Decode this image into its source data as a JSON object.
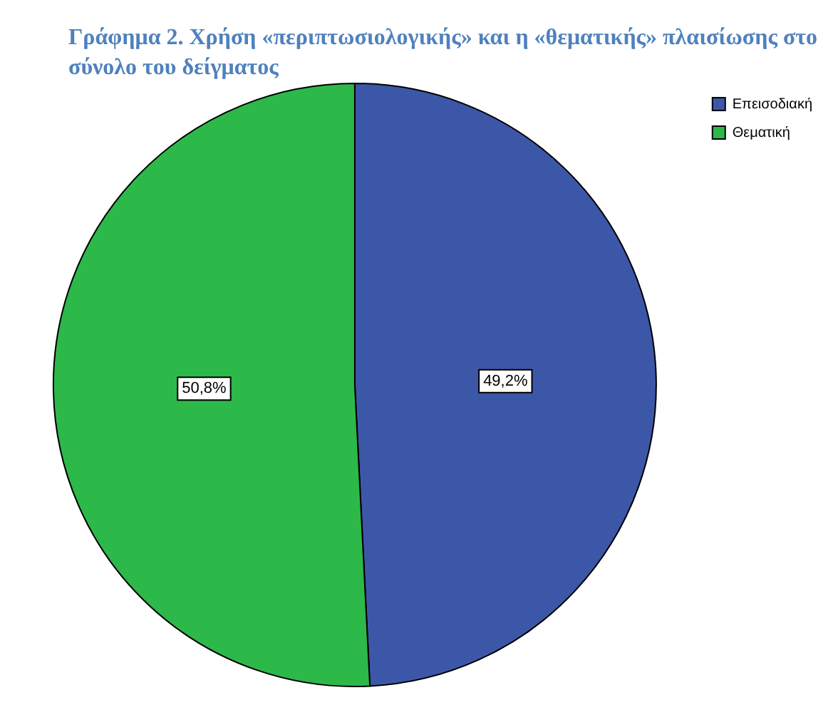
{
  "chart_data": {
    "type": "pie",
    "title": "Γράφημα 2. Χρήση «περιπτωσιολογικής» και η «θεματικής» πλαισίωσης στο σύνολο του δείγματος",
    "categories": [
      "Επεισοδιακή",
      "Θεματική"
    ],
    "values": [
      49.2,
      50.8
    ],
    "colors": [
      "#3d57a8",
      "#2db84a"
    ],
    "value_labels": [
      "49,2%",
      "50,8%"
    ],
    "legend": "top right"
  }
}
